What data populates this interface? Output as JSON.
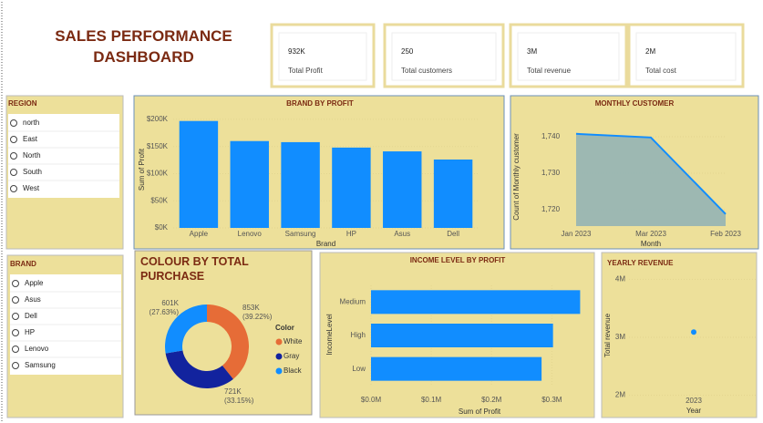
{
  "header": {
    "title": "SALES PERFORMANCE DASHBOARD"
  },
  "kpis": [
    {
      "value": "932K",
      "label": "Total Profit"
    },
    {
      "value": "250",
      "label": "Total customers"
    },
    {
      "value": "3M",
      "label": "Total revenue"
    },
    {
      "value": "2M",
      "label": "Total cost"
    }
  ],
  "region": {
    "title": "REGION",
    "items": [
      "north",
      "East",
      "North",
      "South",
      "West"
    ]
  },
  "brand": {
    "title": "BRAND",
    "items": [
      "Apple",
      "Asus",
      "Dell",
      "HP",
      "Lenovo",
      "Samsung"
    ]
  },
  "chart_data": [
    {
      "type": "bar",
      "title": "BRAND BY PROFIT",
      "x_label": "Brand",
      "y_label": "Sum of Profit",
      "color": "#118dff",
      "categories": [
        "Apple",
        "Lenovo",
        "Samsung",
        "HP",
        "Asus",
        "Dell"
      ],
      "values": [
        197000,
        160000,
        158000,
        148000,
        141000,
        126000
      ],
      "ylim": [
        0,
        215000
      ],
      "yticks": [
        {
          "value": 0,
          "label": "$0K"
        },
        {
          "value": 50000,
          "label": "$50K"
        },
        {
          "value": 100000,
          "label": "$100K"
        },
        {
          "value": 150000,
          "label": "$150K"
        },
        {
          "value": 200000,
          "label": "$200K"
        }
      ]
    },
    {
      "type": "area",
      "title": "MONTHLY CUSTOMER",
      "x_label": "Month",
      "y_label": "Count of Monthly customer",
      "color": "#118dff",
      "fill": "#94b4b5",
      "categories": [
        "Jan 2023",
        "Mar 2023",
        "Feb 2023"
      ],
      "values": [
        1740.8,
        1739.8,
        1718.8
      ],
      "ylim": [
        1715.5,
        1742.5
      ],
      "yticks": [
        {
          "value": 1720,
          "label": "1,720"
        },
        {
          "value": 1730,
          "label": "1,730"
        },
        {
          "value": 1740,
          "label": "1,740"
        }
      ]
    },
    {
      "type": "donut",
      "title": "COLOUR BY TOTAL PURCHASE",
      "legend_title": "Color",
      "categories": [
        "White",
        "Gray",
        "Black"
      ],
      "colors": [
        "#e66c37",
        "#12239e",
        "#118dff"
      ],
      "values": [
        853000,
        721000,
        601000
      ],
      "value_labels": [
        "853K",
        "721K",
        "601K"
      ],
      "percent_labels": [
        "(39.22%)",
        "(33.15%)",
        "(27.63%)"
      ]
    },
    {
      "type": "hbar",
      "title": "INCOME LEVEL BY PROFIT",
      "x_label": "Sum of Profit",
      "y_label": "IncomeLevel",
      "color": "#118dff",
      "categories": [
        "Medium",
        "High",
        "Low"
      ],
      "values": [
        347000,
        302000,
        283000
      ],
      "xlim": [
        0,
        360000
      ],
      "xticks": [
        {
          "value": 0,
          "label": "$0.0M"
        },
        {
          "value": 100000,
          "label": "$0.1M"
        },
        {
          "value": 200000,
          "label": "$0.2M"
        },
        {
          "value": 300000,
          "label": "$0.3M"
        }
      ]
    },
    {
      "type": "point",
      "title": "YEARLY REVENUE",
      "x_label": "Year",
      "y_label": "Total revenue",
      "color": "#118dff",
      "categories": [
        "2023"
      ],
      "values": [
        3090000
      ],
      "ylim": [
        1900000,
        4100000
      ],
      "yticks": [
        {
          "value": 2000000,
          "label": "2M"
        },
        {
          "value": 3000000,
          "label": "3M"
        },
        {
          "value": 4000000,
          "label": "4M"
        }
      ]
    }
  ]
}
